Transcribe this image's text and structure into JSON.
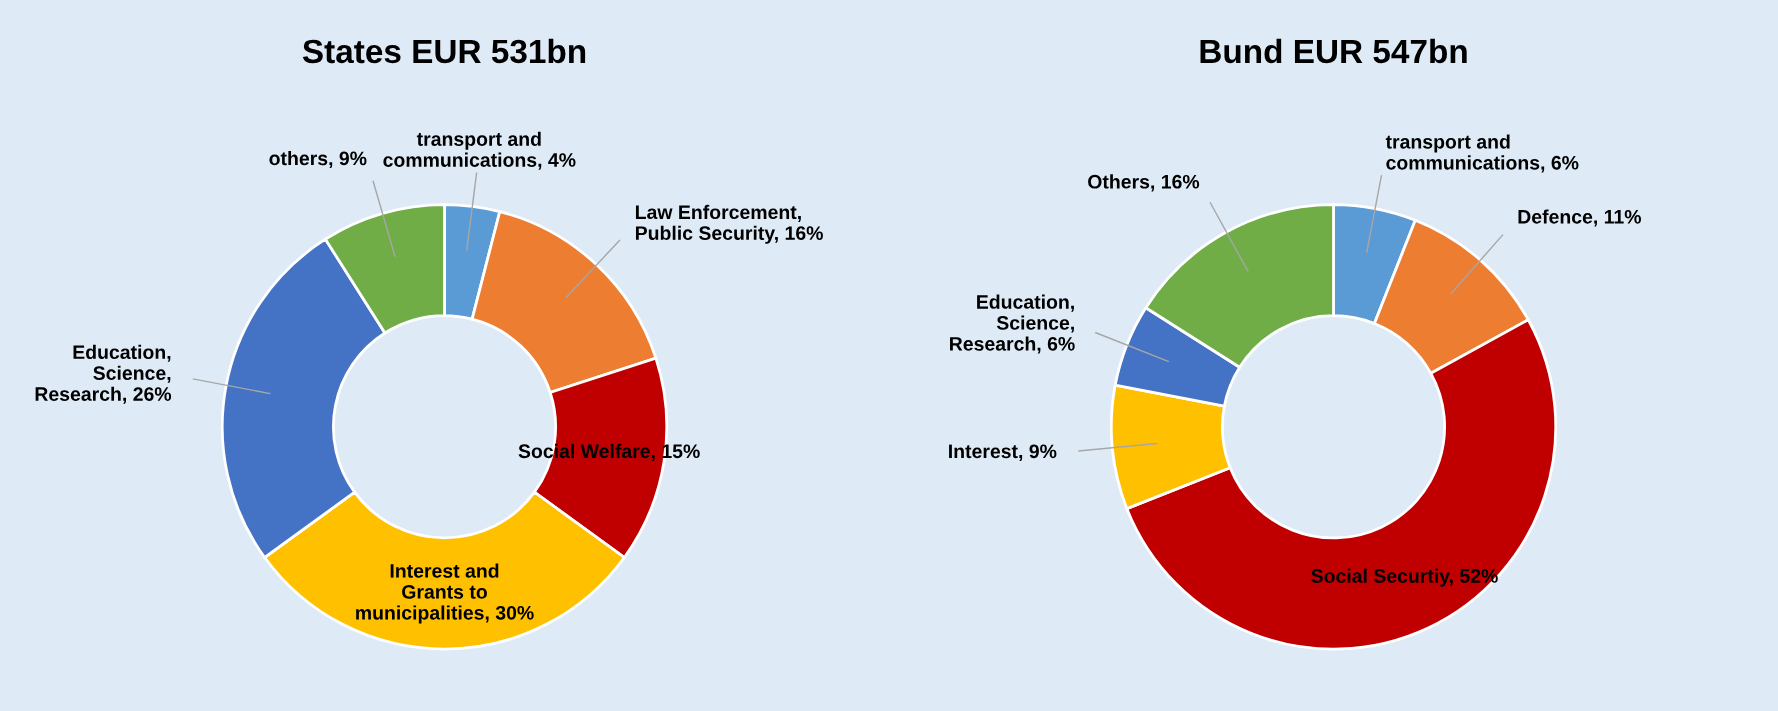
{
  "chart_data": [
    {
      "type": "donut",
      "title": "States EUR 531bn",
      "categories": [
        "transport and communications",
        "Law Enforcement, Public Security",
        "Social Welfare",
        "Interest and Grants to municipalities",
        "Education, Science, Research",
        "others"
      ],
      "values": [
        4,
        16,
        15,
        30,
        26,
        9
      ],
      "value_labels": [
        "4%",
        "16%",
        "15%",
        "30%",
        "26%",
        "9%"
      ],
      "colors": [
        "#5b9bd5",
        "#ed7d31",
        "#c00000",
        "#ffc000",
        "#4472c4",
        "#70ad47"
      ]
    },
    {
      "type": "donut",
      "title": "Bund EUR 547bn",
      "categories": [
        "transport and communications",
        "Defence",
        "Social Securtiy",
        "Interest",
        "Education, Science, Research",
        "Others"
      ],
      "values": [
        6,
        11,
        52,
        9,
        6,
        16
      ],
      "value_labels": [
        "6%",
        "11%",
        "52%",
        "9%",
        "6%",
        "16%"
      ],
      "colors": [
        "#5b9bd5",
        "#ed7d31",
        "#c00000",
        "#ffc000",
        "#4472c4",
        "#70ad47"
      ]
    }
  ]
}
